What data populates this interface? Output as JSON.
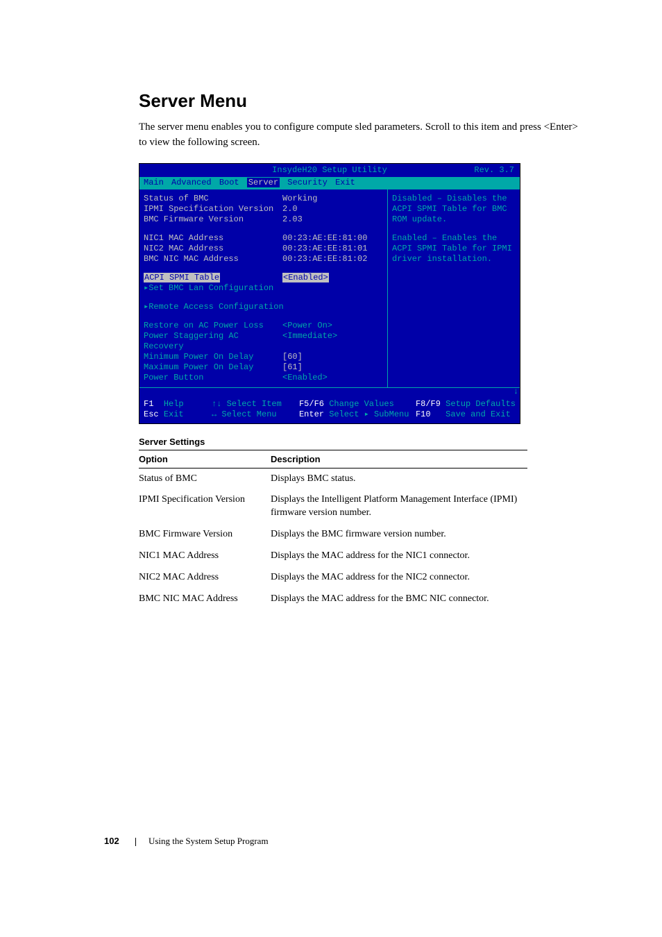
{
  "heading": "Server Menu",
  "intro": "The server menu enables you to configure compute sled parameters. Scroll to this item and press <Enter> to view the following screen.",
  "bios": {
    "title": "InsydeH20 Setup Utility",
    "rev": "Rev. 3.7",
    "menu": {
      "items": [
        "Main",
        "Advanced",
        "Boot",
        "Server",
        "Security",
        "Exit"
      ],
      "active_index": 3
    },
    "left": {
      "block1": [
        {
          "label": "Status of BMC",
          "value": "Working",
          "label_color": "#c0c0c0",
          "value_color": "#c0c0c0"
        },
        {
          "label": "IPMI Specification Version",
          "value": "2.0",
          "label_color": "#c0c0c0",
          "value_color": "#c0c0c0"
        },
        {
          "label": "BMC Firmware Version",
          "value": "2.03",
          "label_color": "#c0c0c0",
          "value_color": "#c0c0c0"
        }
      ],
      "block2": [
        {
          "label": "NIC1 MAC Address",
          "value": "00:23:AE:EE:81:00",
          "label_color": "#c0c0c0",
          "value_color": "#c0c0c0"
        },
        {
          "label": "NIC2 MAC Address",
          "value": "00:23:AE:EE:81:01",
          "label_color": "#c0c0c0",
          "value_color": "#c0c0c0"
        },
        {
          "label": "BMC NIC MAC Address",
          "value": "00:23:AE:EE:81:02",
          "label_color": "#c0c0c0",
          "value_color": "#c0c0c0"
        }
      ],
      "highlight": {
        "label": "ACPI SPMI Table",
        "value": "<Enabled>"
      },
      "submenu1": "▸Set BMC Lan Configuration",
      "submenu2": "▸Remote Access Configuration",
      "block3": [
        {
          "label": "Restore on AC Power Loss",
          "value": "<Power On>",
          "label_color": "#00a8a8",
          "value_color": "#00a8a8"
        },
        {
          "label": "Power Staggering AC Recovery",
          "value": "<Immediate>",
          "label_color": "#00a8a8",
          "value_color": "#00a8a8"
        },
        {
          "label": "Minimum Power On Delay",
          "value": "[60]",
          "label_color": "#00a8a8",
          "value_color": "#c0c0c0"
        },
        {
          "label": "Maximum Power On Delay",
          "value": "[61]",
          "label_color": "#00a8a8",
          "value_color": "#c0c0c0"
        },
        {
          "label": "Power Button",
          "value": "<Enabled>",
          "label_color": "#00a8a8",
          "value_color": "#00a8a8"
        }
      ]
    },
    "right": {
      "p1_l1": "Disabled – Disables the",
      "p1_l2": "ACPI SPMI Table for BMC",
      "p1_l3": "ROM update.",
      "p2_l1": "Enabled – Enables the",
      "p2_l2": "ACPI SPMI Table for IPMI",
      "p2_l3": "driver installation."
    },
    "footer": {
      "f1": {
        "key": "F1",
        "desc": "Help"
      },
      "sel_item": {
        "key": "↑↓",
        "desc": "Select Item"
      },
      "f5f6": {
        "key": "F5/F6",
        "desc": "Change Values"
      },
      "f8f9": {
        "key": "F8/F9",
        "desc": "Setup Defaults"
      },
      "esc": {
        "key": "Esc",
        "desc": "Exit"
      },
      "sel_menu": {
        "key": "↔",
        "desc": "Select Menu"
      },
      "enter": {
        "key": "Enter",
        "desc": "Select ▸ SubMenu"
      },
      "f10": {
        "key": "F10",
        "desc": "Save and Exit"
      }
    }
  },
  "table": {
    "title": "Server Settings",
    "col1": "Option",
    "col2": "Description",
    "rows": [
      {
        "opt": "Status of BMC",
        "desc": "Displays BMC status."
      },
      {
        "opt": "IPMI Specification Version",
        "desc": "Displays the Intelligent Platform Management Interface (IPMI) firmware version number."
      },
      {
        "opt": "BMC Firmware Version",
        "desc": "Displays the BMC firmware version number."
      },
      {
        "opt": "NIC1 MAC Address",
        "desc": "Displays the MAC address for the NIC1 connector."
      },
      {
        "opt": "NIC2 MAC Address",
        "desc": "Displays the MAC address for the NIC2 connector."
      },
      {
        "opt": "BMC NIC MAC Address",
        "desc": "Displays the MAC address for the BMC NIC connector."
      }
    ]
  },
  "page_footer": {
    "number": "102",
    "section": "Using the System Setup Program"
  }
}
